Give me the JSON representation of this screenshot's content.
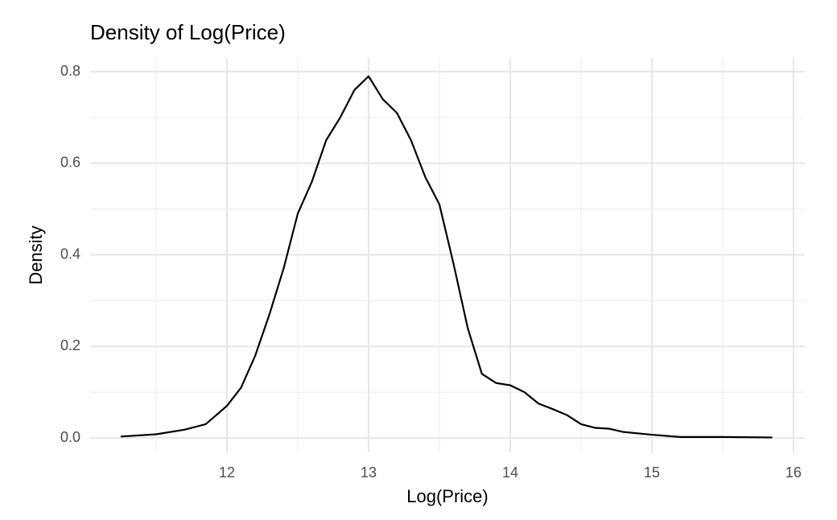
{
  "chart_data": {
    "type": "line",
    "title": "Density of Log(Price)",
    "x_label": "Log(Price)",
    "y_label": "Density",
    "x": [
      11.25,
      11.5,
      11.7,
      11.85,
      12.0,
      12.1,
      12.2,
      12.3,
      12.4,
      12.5,
      12.6,
      12.7,
      12.8,
      12.9,
      13.0,
      13.1,
      13.2,
      13.3,
      13.4,
      13.5,
      13.6,
      13.7,
      13.8,
      13.9,
      14.0,
      14.1,
      14.2,
      14.3,
      14.4,
      14.5,
      14.6,
      14.7,
      14.8,
      15.0,
      15.2,
      15.5,
      15.85
    ],
    "values": [
      0.003,
      0.008,
      0.018,
      0.03,
      0.07,
      0.11,
      0.18,
      0.27,
      0.37,
      0.49,
      0.56,
      0.65,
      0.7,
      0.76,
      0.79,
      0.74,
      0.71,
      0.65,
      0.57,
      0.51,
      0.38,
      0.24,
      0.14,
      0.12,
      0.115,
      0.1,
      0.075,
      0.063,
      0.05,
      0.03,
      0.022,
      0.02,
      0.013,
      0.007,
      0.002,
      0.002,
      0.001
    ],
    "color": "#000000",
    "xlim": [
      11.034,
      16.08
    ],
    "ylim": [
      -0.0316,
      0.83
    ],
    "xticks": [
      12,
      13,
      14,
      15,
      16
    ],
    "yticks": [
      {
        "value": 0,
        "label": "0.0"
      },
      0.2,
      0.4,
      0.6,
      0.8
    ],
    "x_minor_grid": [
      11.5,
      12.5,
      13.5,
      14.5,
      15.5
    ],
    "y_minor_grid": [
      0.1,
      0.3,
      0.5,
      0.7
    ],
    "grid": true
  }
}
